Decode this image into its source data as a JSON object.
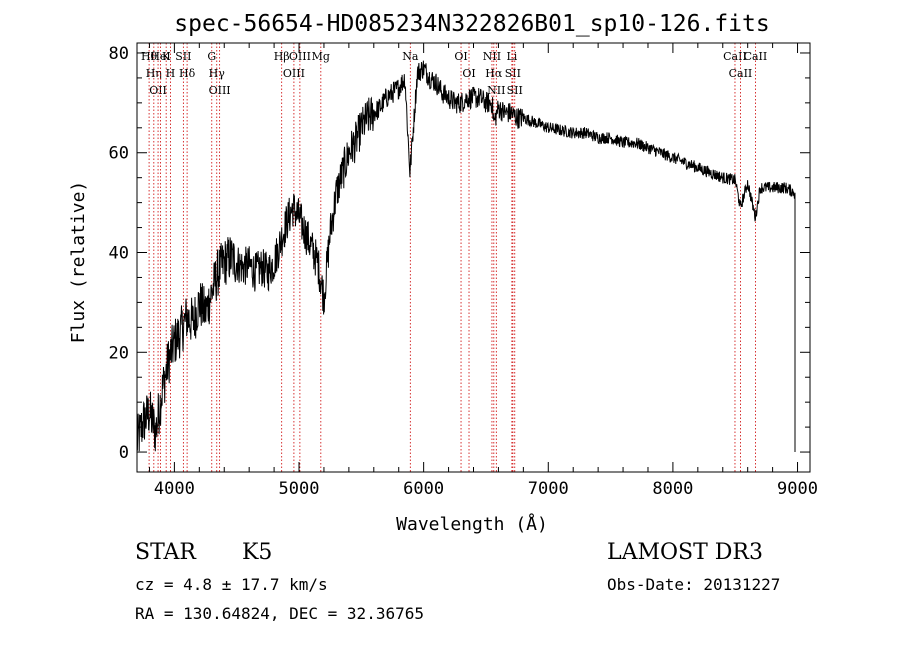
{
  "chart_data": {
    "type": "line",
    "title": "spec-56654-HD085234N322826B01_sp10-126.fits",
    "xlabel": "Wavelength (Å)",
    "ylabel": "Flux (relative)",
    "xlim": [
      3700,
      9100
    ],
    "ylim": [
      -4,
      82
    ],
    "x_ticks": [
      4000,
      5000,
      6000,
      7000,
      8000,
      9000
    ],
    "x_tick_labels": [
      "4000",
      "5000",
      "6000",
      "7000",
      "8000",
      "9000"
    ],
    "y_ticks": [
      0,
      20,
      40,
      60,
      80
    ],
    "y_tick_labels": [
      "0",
      "20",
      "40",
      "60",
      "80"
    ],
    "grid": false,
    "series": [
      {
        "x": [
          3700,
          3750,
          3800,
          3850,
          3900,
          3950,
          4000,
          4050,
          4100,
          4150,
          4200,
          4250,
          4300,
          4350,
          4400,
          4450,
          4500,
          4550,
          4600,
          4650,
          4700,
          4750,
          4800,
          4850,
          4900,
          4950,
          5000,
          5050,
          5100,
          5150,
          5200,
          5250,
          5300,
          5350,
          5400,
          5450,
          5500,
          5550,
          5600,
          5650,
          5700,
          5750,
          5800,
          5850,
          5890,
          5950,
          6000,
          6050,
          6100,
          6150,
          6200,
          6250,
          6300,
          6350,
          6400,
          6450,
          6500,
          6550,
          6563,
          6600,
          6650,
          6700,
          6750,
          6800,
          6900,
          7000,
          7100,
          7200,
          7300,
          7400,
          7500,
          7600,
          7700,
          7800,
          7900,
          8000,
          8100,
          8200,
          8300,
          8400,
          8500,
          8542,
          8600,
          8662,
          8700,
          8800,
          8900,
          8980
        ],
        "y": [
          2,
          6,
          8,
          4,
          12,
          18,
          22,
          24,
          27,
          26,
          30,
          28,
          32,
          36,
          38,
          39,
          38,
          37,
          37.5,
          36,
          37,
          36,
          38,
          42,
          46,
          49,
          47,
          44,
          41,
          38,
          31,
          44,
          52,
          56,
          60,
          62,
          65,
          67,
          68,
          69,
          71,
          72,
          73,
          75,
          56,
          76,
          77,
          75,
          74,
          72,
          71,
          70,
          70,
          71,
          71,
          71,
          70,
          70,
          66,
          69,
          68,
          68,
          67,
          67,
          66,
          65,
          64.5,
          64,
          64,
          63,
          63,
          62,
          62,
          61,
          60,
          59,
          58,
          57,
          56,
          55,
          54.5,
          49,
          54,
          47,
          53,
          53,
          53,
          52
        ]
      }
    ],
    "line_marks": [
      {
        "wl": 3797,
        "name": "Hθ"
      },
      {
        "wl": 3835,
        "name": "Hη"
      },
      {
        "wl": 3869,
        "name": "OII"
      },
      {
        "wl": 3889,
        "name": "HeI"
      },
      {
        "wl": 3934,
        "name": "K"
      },
      {
        "wl": 3968,
        "name": "H"
      },
      {
        "wl": 4072,
        "name": "SII"
      },
      {
        "wl": 4102,
        "name": "Hδ"
      },
      {
        "wl": 4300,
        "name": "G"
      },
      {
        "wl": 4340,
        "name": "Hγ"
      },
      {
        "wl": 4363,
        "name": "OIII"
      },
      {
        "wl": 4861,
        "name": "Hβ"
      },
      {
        "wl": 4959,
        "name": "OIII"
      },
      {
        "wl": 5007,
        "name": "OIII"
      },
      {
        "wl": 5175,
        "name": "Mg"
      },
      {
        "wl": 5893,
        "name": "Na"
      },
      {
        "wl": 6300,
        "name": "OI"
      },
      {
        "wl": 6364,
        "name": "OI"
      },
      {
        "wl": 6548,
        "name": "NII"
      },
      {
        "wl": 6563,
        "name": "Hα"
      },
      {
        "wl": 6583,
        "name": "NII"
      },
      {
        "wl": 6708,
        "name": "Li"
      },
      {
        "wl": 6716,
        "name": "SII"
      },
      {
        "wl": 6731,
        "name": "SII"
      },
      {
        "wl": 8498,
        "name": "CaII"
      },
      {
        "wl": 8542,
        "name": "CaII"
      },
      {
        "wl": 8662,
        "name": "CaII"
      }
    ],
    "colors": {
      "line": "#000000",
      "marks": "#cc0000",
      "axes": "#000000"
    }
  },
  "info": {
    "class_label": "STAR",
    "subclass_label": "K5",
    "survey": "LAMOST DR3",
    "redshift": "cz = 4.8 ± 17.7 km/s",
    "obs_date": "Obs-Date: 20131227",
    "coords": "RA = 130.64824, DEC =  32.36765"
  }
}
